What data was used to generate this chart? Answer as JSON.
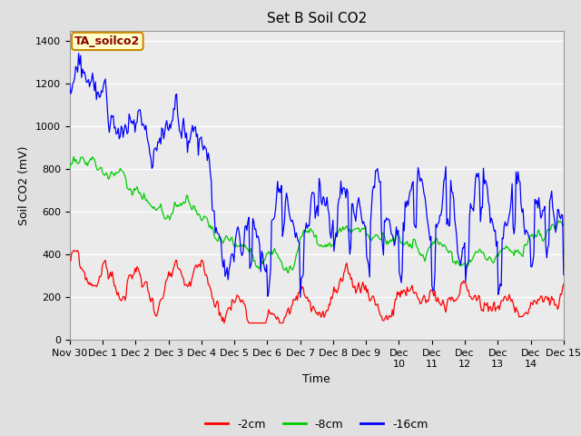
{
  "title": "Set B Soil CO2",
  "ylabel": "Soil CO2 (mV)",
  "xlabel": "Time",
  "annotation": "TA_soilco2",
  "annotation_color": "#8B0000",
  "annotation_bg": "#FFFFCC",
  "annotation_border": "#CC8800",
  "ylim": [
    0,
    1450
  ],
  "yticks": [
    0,
    200,
    400,
    600,
    800,
    1000,
    1200,
    1400
  ],
  "xtick_labels": [
    "Nov 30",
    "Dec 1",
    "Dec 2",
    "Dec 3",
    "Dec 4",
    "Dec 5",
    "Dec 6",
    "Dec 7",
    "Dec 8",
    "Dec 9",
    "Dec\n10",
    "Dec\n11",
    "Dec\n12",
    "Dec\n13",
    "Dec\n14",
    "Dec 15"
  ],
  "line_colors": {
    "2cm": "#FF0000",
    "8cm": "#00CC00",
    "16cm": "#0000FF"
  },
  "legend_labels": [
    "-2cm",
    "-8cm",
    "-16cm"
  ],
  "bg_color": "#E0E0E0",
  "plot_bg_color": "#EBEBEB",
  "grid_color": "#FFFFFF",
  "title_fontsize": 11,
  "axis_label_fontsize": 9,
  "tick_label_fontsize": 8
}
